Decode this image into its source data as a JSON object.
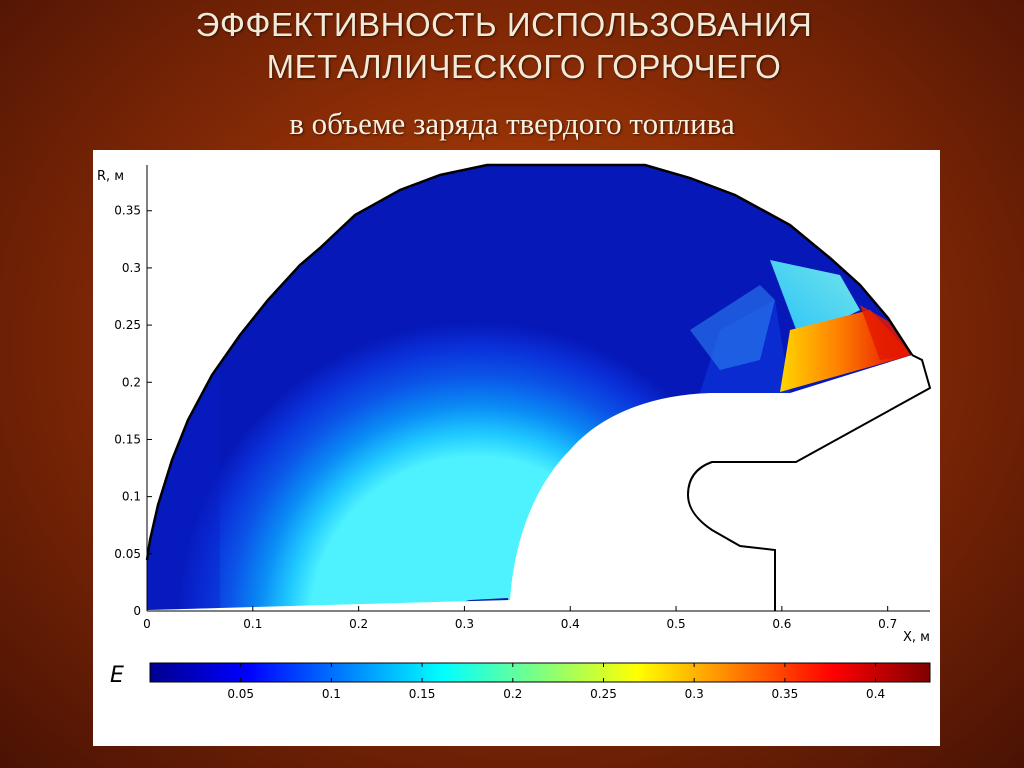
{
  "title_line1": "ЭФФЕКТИВНОСТЬ ИСПОЛЬЗОВАНИЯ",
  "title_line2": "МЕТАЛЛИЧЕСКОГО ГОРЮЧЕГО",
  "subtitle": "в объеме заряда твердого топлива",
  "chart_data": {
    "type": "heatmap",
    "xlabel": "X, м",
    "ylabel": "R, м",
    "xlim": [
      0,
      0.74
    ],
    "ylim": [
      0,
      0.39
    ],
    "xticks": [
      "0",
      "0.1",
      "0.2",
      "0.3",
      "0.4",
      "0.5",
      "0.6",
      "0.7"
    ],
    "yticks": [
      "0",
      "0.05",
      "0.1",
      "0.15",
      "0.2",
      "0.25",
      "0.3",
      "0.35"
    ],
    "colorbar_label": "E",
    "colorbar_range": [
      0,
      0.43
    ],
    "colorbar_ticks": [
      "0.05",
      "0.1",
      "0.15",
      "0.2",
      "0.25",
      "0.3",
      "0.35",
      "0.4"
    ],
    "colormap": [
      "#00008f",
      "#0000ff",
      "#00ffff",
      "#ffff00",
      "#ff0000",
      "#800000"
    ]
  }
}
